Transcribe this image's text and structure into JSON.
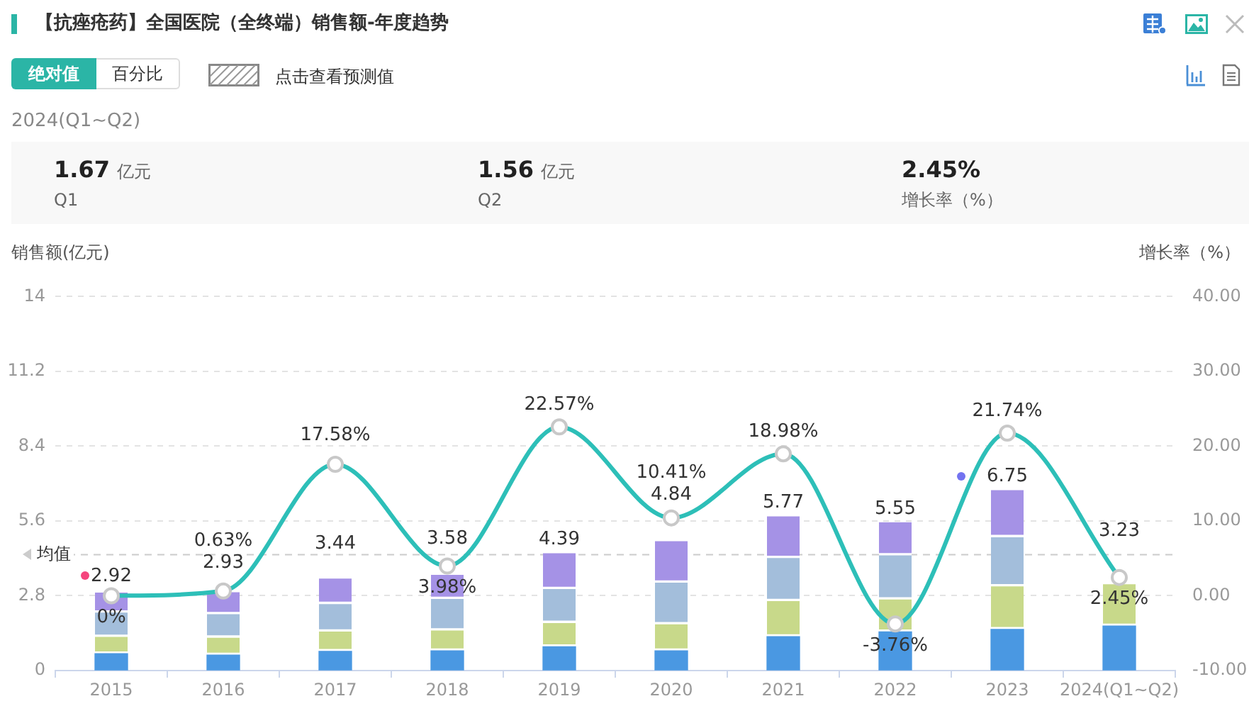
{
  "chart_data": {
    "type": "bar",
    "title": "【抗痤疮药】全国医院（全终端）销售额-年度趋势",
    "ylabel": "销售额(亿元)",
    "y2label": "增长率（%）",
    "categories": [
      "2015",
      "2016",
      "2017",
      "2018",
      "2019",
      "2020",
      "2021",
      "2022",
      "2023",
      "2024(Q1~Q2)"
    ],
    "stacked": true,
    "series": [
      {
        "color": "#4a98e2",
        "values": [
          0.63,
          0.58,
          0.72,
          0.74,
          0.89,
          0.74,
          1.27,
          1.45,
          1.54,
          1.67
        ]
      },
      {
        "color": "#c8d98a",
        "values": [
          0.63,
          0.65,
          0.74,
          0.76,
          0.89,
          0.99,
          1.33,
          1.21,
          1.61,
          1.56
        ]
      },
      {
        "color": "#a3bedb",
        "values": [
          0.91,
          0.88,
          1.03,
          1.18,
          1.27,
          1.56,
          1.61,
          1.65,
          1.84,
          null
        ]
      },
      {
        "color": "#a592e6",
        "values": [
          0.75,
          0.82,
          0.95,
          0.9,
          1.34,
          1.55,
          1.56,
          1.24,
          1.76,
          null
        ]
      },
      {
        "type": "line",
        "axis": "y2",
        "color": "#2dbfb8",
        "values": [
          0,
          0.63,
          17.58,
          3.98,
          22.57,
          10.41,
          18.98,
          -3.76,
          21.74,
          2.45
        ],
        "value_labels": [
          "0%",
          "0.63%",
          "17.58%",
          "3.98%",
          "22.57%",
          "10.41%",
          "18.98%",
          "-3.76%",
          "21.74%",
          "2.45%"
        ]
      }
    ],
    "totals": [
      "2.92",
      "2.93",
      "3.44",
      "3.58",
      "4.39",
      "4.84",
      "5.77",
      "5.55",
      "6.75",
      "3.23"
    ],
    "ylim": [
      0,
      14
    ],
    "yticks": [
      0,
      2.8,
      5.6,
      8.4,
      11.2,
      14
    ],
    "y2lim": [
      -10,
      40
    ],
    "y2ticks": [
      {
        "value": -10,
        "label": "-10.00"
      },
      {
        "value": 0,
        "label": "0.00"
      },
      {
        "value": 10,
        "label": "10.00"
      },
      {
        "value": 20,
        "label": "20.00"
      },
      {
        "value": 30,
        "label": "30.00"
      },
      {
        "value": 40,
        "label": "40.00"
      }
    ],
    "grid": "y",
    "marker": "circle",
    "line_style": "solid",
    "ref_lines": [
      {
        "axis": "y",
        "value": 4.34,
        "label": "均值",
        "color": "#cccccc",
        "line_style": "dashed"
      }
    ],
    "annotations": [
      "绝对值",
      "百分比",
      "点击查看预测值",
      "2024(Q1~Q2)",
      "1.67",
      "亿元",
      "Q1",
      "1.56",
      "亿元",
      "Q2",
      "2.45%",
      "增长率（%）"
    ]
  }
}
